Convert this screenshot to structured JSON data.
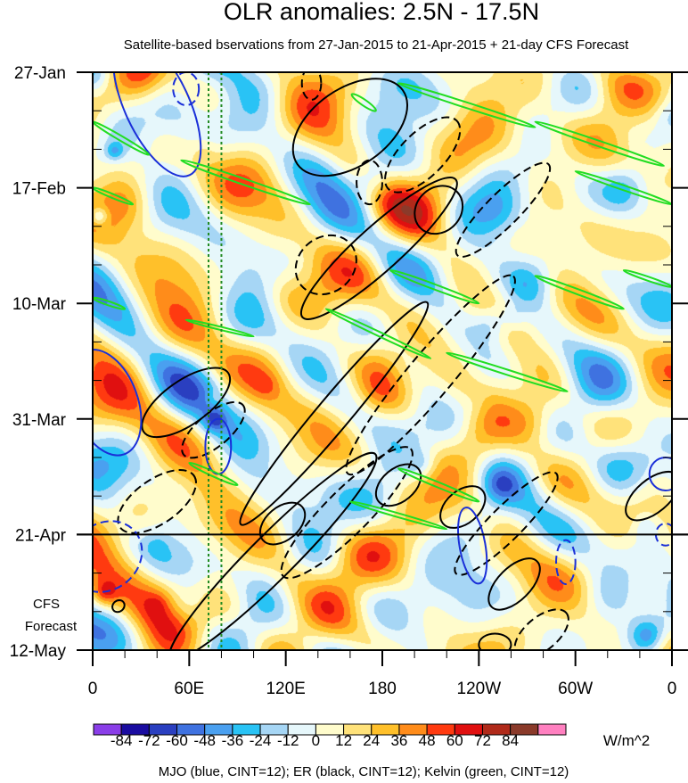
{
  "chart_data": {
    "type": "heatmap",
    "title": "OLR anomalies: 2.5N - 17.5N",
    "subtitle": "Satellite-based bservations from 27-Jan-2015 to 21-Apr-2015 + 21-day CFS Forecast",
    "x_ticks": [
      "0",
      "60E",
      "120E",
      "180",
      "120W",
      "60W",
      "0"
    ],
    "y_ticks": [
      "27-Jan",
      "17-Feb",
      "10-Mar",
      "31-Mar",
      "21-Apr",
      "12-May"
    ],
    "forecast_label": [
      "CFS",
      "Forecast"
    ],
    "forecast_start": "21-Apr",
    "colorbar": {
      "labels": [
        "-84",
        "-72",
        "-60",
        "-48",
        "-36",
        "-24",
        "-12",
        "0",
        "12",
        "24",
        "36",
        "48",
        "60",
        "72",
        "84"
      ],
      "units": "W/m^2",
      "colors": [
        "#8a3ee8",
        "#1a0ca0",
        "#2a3fc0",
        "#3f72e0",
        "#4aa0f0",
        "#29c3f5",
        "#a6d6f5",
        "#e6f7fb",
        "#fffccc",
        "#ffe27a",
        "#ffc02a",
        "#ff8c1a",
        "#ff3a10",
        "#e01010",
        "#b02a1a",
        "#8a3a2a",
        "#ff80c0"
      ]
    },
    "footer": "MJO (blue, CINT=12); ER (black, CINT=12); Kelvin (green, CINT=12)",
    "contours": {
      "mjo_color": "#1a2fd8",
      "er_color": "#000000",
      "kelvin_color": "#22dd22",
      "mjo": [
        {
          "lon": 40,
          "day": 6,
          "rlon": 10,
          "rday": 14,
          "rot": -25,
          "dash": false
        },
        {
          "lon": 58,
          "day": 3,
          "rlon": 4,
          "rday": 3,
          "rot": 0,
          "dash": true
        },
        {
          "lon": 8,
          "day": 60,
          "rlon": 10,
          "rday": 10,
          "rot": -20,
          "dash": false
        },
        {
          "lon": 78,
          "day": 68,
          "rlon": 4,
          "rday": 5,
          "rot": 0,
          "dash": false
        },
        {
          "lon": 8,
          "day": 88,
          "rlon": 12,
          "rday": 6,
          "rot": -40,
          "dash": true
        },
        {
          "lon": 236,
          "day": 86,
          "rlon": 4,
          "rday": 7,
          "rot": -10,
          "dash": false
        },
        {
          "lon": 294,
          "day": 89,
          "rlon": 3,
          "rday": 4,
          "rot": 0,
          "dash": true
        },
        {
          "lon": 356,
          "day": 73,
          "rlon": 5,
          "rday": 3,
          "rot": 0,
          "dash": false
        },
        {
          "lon": 356,
          "day": 84,
          "rlon": 3,
          "rday": 2,
          "rot": 0,
          "dash": true
        }
      ],
      "er": [
        {
          "lon": 160,
          "day": 10,
          "rlon": 20,
          "rday": 7,
          "rot": -35,
          "dash": false
        },
        {
          "lon": 136,
          "day": 2,
          "rlon": 3,
          "rday": 3,
          "rot": 0,
          "dash": true
        },
        {
          "lon": 172,
          "day": 20,
          "rlon": 4,
          "rday": 4,
          "rot": 0,
          "dash": true
        },
        {
          "lon": 205,
          "day": 15,
          "rlon": 15,
          "rday": 4,
          "rot": -45,
          "dash": true
        },
        {
          "lon": 215,
          "day": 25,
          "rlon": 8,
          "rday": 4,
          "rot": -45,
          "dash": false
        },
        {
          "lon": 178,
          "day": 32,
          "rlon": 32,
          "rday": 4,
          "rot": -42,
          "dash": false
        },
        {
          "lon": 145,
          "day": 35,
          "rlon": 10,
          "rday": 5,
          "rot": -40,
          "dash": true
        },
        {
          "lon": 255,
          "day": 25,
          "rlon": 20,
          "rday": 3,
          "rot": -45,
          "dash": true
        },
        {
          "lon": 210,
          "day": 55,
          "rlon": 40,
          "rday": 4,
          "rot": -50,
          "dash": true
        },
        {
          "lon": 150,
          "day": 62,
          "rlon": 45,
          "rday": 3,
          "rot": -50,
          "dash": false
        },
        {
          "lon": 58,
          "day": 60,
          "rlon": 16,
          "rday": 4,
          "rot": -35,
          "dash": false
        },
        {
          "lon": 75,
          "day": 65,
          "rlon": 12,
          "rday": 3,
          "rot": -40,
          "dash": true
        },
        {
          "lon": 40,
          "day": 78,
          "rlon": 14,
          "rday": 4,
          "rot": -35,
          "dash": true
        },
        {
          "lon": 112,
          "day": 88,
          "rlon": 45,
          "rday": 4,
          "rot": -45,
          "dash": false
        },
        {
          "lon": 118,
          "day": 82,
          "rlon": 8,
          "rday": 3,
          "rot": -40,
          "dash": false
        },
        {
          "lon": 158,
          "day": 80,
          "rlon": 28,
          "rday": 4,
          "rot": -45,
          "dash": true
        },
        {
          "lon": 190,
          "day": 75,
          "rlon": 8,
          "rday": 3,
          "rot": -40,
          "dash": false
        },
        {
          "lon": 230,
          "day": 79,
          "rlon": 8,
          "rday": 3,
          "rot": -40,
          "dash": false
        },
        {
          "lon": 257,
          "day": 82,
          "rlon": 22,
          "rday": 3,
          "rot": -45,
          "dash": true
        },
        {
          "lon": 262,
          "day": 93,
          "rlon": 10,
          "rday": 3,
          "rot": -45,
          "dash": false
        },
        {
          "lon": 279,
          "day": 102,
          "rlon": 10,
          "rday": 3,
          "rot": -40,
          "dash": true
        },
        {
          "lon": 250,
          "day": 104,
          "rlon": 5,
          "rday": 2,
          "rot": 0,
          "dash": false
        },
        {
          "lon": 348,
          "day": 77,
          "rlon": 10,
          "rday": 3,
          "rot": -40,
          "dash": false
        },
        {
          "lon": 16,
          "day": 97,
          "rlon": 2,
          "rday": 1,
          "rot": -40,
          "dash": false
        }
      ],
      "kelvin": [
        {
          "lon1": 161,
          "day1": 4,
          "lon2": 176,
          "day2": 7,
          "w": 1.5
        },
        {
          "lon1": 190,
          "day1": 2,
          "lon2": 275,
          "day2": 10,
          "w": 1.4
        },
        {
          "lon1": 275,
          "day1": 9,
          "lon2": 355,
          "day2": 17,
          "w": 1.4
        },
        {
          "lon1": 0,
          "day1": 9,
          "lon2": 35,
          "day2": 15,
          "w": 1.2
        },
        {
          "lon1": 55,
          "day1": 16,
          "lon2": 135,
          "day2": 24,
          "w": 1.5
        },
        {
          "lon1": 0,
          "day1": 21,
          "lon2": 25,
          "day2": 24,
          "w": 1.0
        },
        {
          "lon1": 300,
          "day1": 18,
          "lon2": 360,
          "day2": 24,
          "w": 1.2
        },
        {
          "lon1": 185,
          "day1": 36,
          "lon2": 240,
          "day2": 42,
          "w": 1.3
        },
        {
          "lon1": 275,
          "day1": 37,
          "lon2": 330,
          "day2": 43,
          "w": 1.3
        },
        {
          "lon1": 330,
          "day1": 36,
          "lon2": 360,
          "day2": 39,
          "w": 1.0
        },
        {
          "lon1": 0,
          "day1": 41,
          "lon2": 20,
          "day2": 43,
          "w": 1.0
        },
        {
          "lon1": 145,
          "day1": 43,
          "lon2": 210,
          "day2": 52,
          "w": 1.1
        },
        {
          "lon1": 220,
          "day1": 51,
          "lon2": 295,
          "day2": 58,
          "w": 1.3
        },
        {
          "lon1": 58,
          "day1": 45,
          "lon2": 100,
          "day2": 48,
          "w": 0.8
        },
        {
          "lon1": 60,
          "day1": 71,
          "lon2": 90,
          "day2": 75,
          "w": 1.2
        },
        {
          "lon1": 190,
          "day1": 72,
          "lon2": 240,
          "day2": 78,
          "w": 1.3
        },
        {
          "lon1": 160,
          "day1": 78,
          "lon2": 220,
          "day2": 83,
          "w": 1.0
        }
      ],
      "meridian_lons": [
        72,
        80
      ]
    }
  }
}
